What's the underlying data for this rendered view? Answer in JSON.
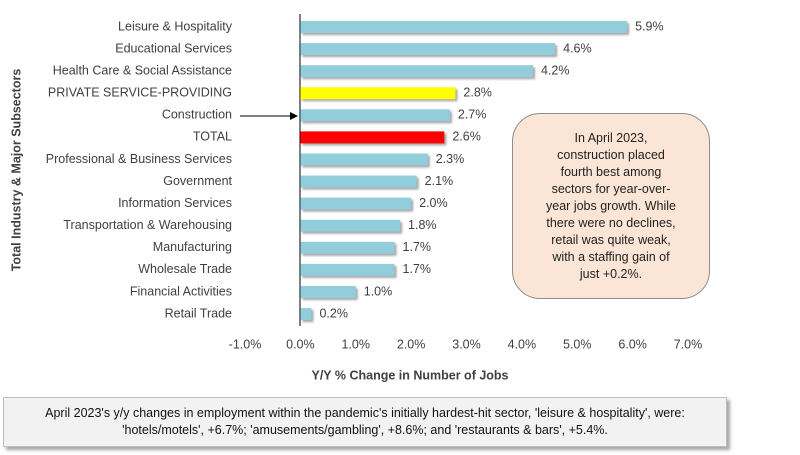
{
  "chart_data": {
    "type": "bar",
    "orientation": "horizontal",
    "categories": [
      "Leisure & Hospitality",
      "Educational Services",
      "Health Care & Social Assistance",
      "PRIVATE SERVICE-PROVIDING",
      "Construction",
      "TOTAL",
      "Professional & Business Services",
      "Government",
      "Information Services",
      "Transportation & Warehousing",
      "Manufacturing",
      "Wholesale Trade",
      "Financial Activities",
      "Retail Trade"
    ],
    "values": [
      5.9,
      4.6,
      4.2,
      2.8,
      2.7,
      2.6,
      2.3,
      2.1,
      2.0,
      1.8,
      1.7,
      1.7,
      1.0,
      0.2
    ],
    "value_labels": [
      "5.9%",
      "4.6%",
      "4.2%",
      "2.8%",
      "2.7%",
      "2.6%",
      "2.3%",
      "2.1%",
      "2.0%",
      "1.8%",
      "1.7%",
      "1.7%",
      "1.0%",
      "0.2%"
    ],
    "colors": [
      "#92cddc",
      "#92cddc",
      "#92cddc",
      "#ffff00",
      "#92cddc",
      "#ff0000",
      "#92cddc",
      "#92cddc",
      "#92cddc",
      "#92cddc",
      "#92cddc",
      "#92cddc",
      "#92cddc",
      "#92cddc"
    ],
    "xlim": [
      -1,
      7
    ],
    "xticks": [
      {
        "value": -1,
        "label": "-1.0%"
      },
      {
        "value": 0,
        "label": "0.0%"
      },
      {
        "value": 1,
        "label": "1.0%"
      },
      {
        "value": 2,
        "label": "2.0%"
      },
      {
        "value": 3,
        "label": "3.0%"
      },
      {
        "value": 4,
        "label": "4.0%"
      },
      {
        "value": 5,
        "label": "5.0%"
      },
      {
        "value": 6,
        "label": "6.0%"
      },
      {
        "value": 7,
        "label": "7.0%"
      }
    ],
    "xlabel": "Y/Y % Change in Number of Jobs",
    "ylabel": "Total Industry & Major Subsectors",
    "annotation": [
      "In April 2023,",
      "construction placed",
      "fourth best among",
      "sectors for year-over-",
      "year jobs growth. While",
      "there were no declines,",
      "retail was quite weak,",
      "with a staffing gain of",
      "just +0.2%."
    ],
    "caption": [
      "April 2023's y/y changes in employment within the pandemic's initially hardest-hit sector, 'leisure & hospitality', were:",
      "'hotels/motels', +6.7%; 'amusements/gambling', +8.6%; and 'restaurants & bars', +5.4%."
    ]
  }
}
